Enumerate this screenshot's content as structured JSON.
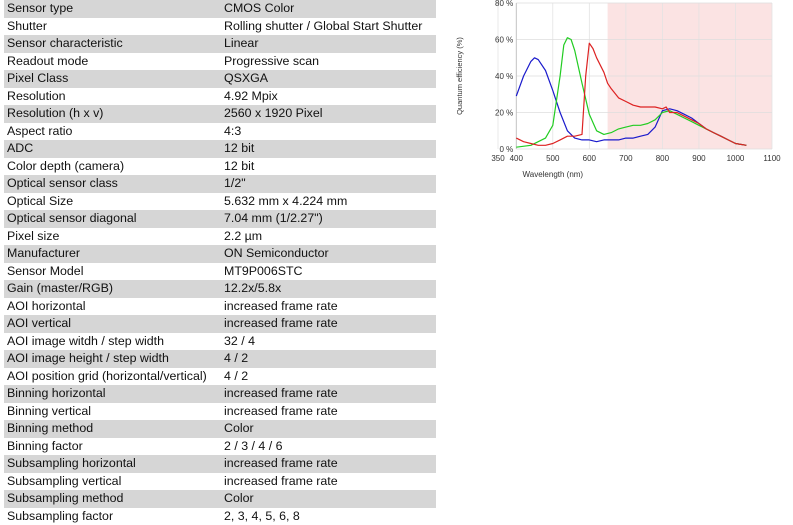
{
  "specs": [
    {
      "label": "Sensor type",
      "value": "CMOS Color"
    },
    {
      "label": "Shutter",
      "value": "Rolling shutter / Global Start Shutter"
    },
    {
      "label": "Sensor characteristic",
      "value": "Linear"
    },
    {
      "label": "Readout mode",
      "value": "Progressive scan"
    },
    {
      "label": "Pixel Class",
      "value": "QSXGA"
    },
    {
      "label": "Resolution",
      "value": "4.92 Mpix"
    },
    {
      "label": "Resolution (h x v)",
      "value": "2560 x 1920 Pixel"
    },
    {
      "label": "Aspect ratio",
      "value": "4:3"
    },
    {
      "label": "ADC",
      "value": "12 bit"
    },
    {
      "label": "Color depth (camera)",
      "value": "12 bit"
    },
    {
      "label": "Optical sensor class",
      "value": "1/2\""
    },
    {
      "label": "Optical Size",
      "value": "5.632 mm x 4.224 mm"
    },
    {
      "label": "Optical sensor diagonal",
      "value": "7.04 mm (1/2.27\")"
    },
    {
      "label": "Pixel size",
      "value": "2.2 µm"
    },
    {
      "label": "Manufacturer",
      "value": "ON Semiconductor"
    },
    {
      "label": "Sensor Model",
      "value": "MT9P006STC"
    },
    {
      "label": "Gain (master/RGB)",
      "value": "12.2x/5.8x"
    },
    {
      "label": "AOI horizontal",
      "value": "increased frame rate"
    },
    {
      "label": "AOI vertical",
      "value": "increased frame rate"
    },
    {
      "label": "AOI image witdh / step width",
      "value": "32 / 4"
    },
    {
      "label": "AOI image height / step width",
      "value": "4 / 2"
    },
    {
      "label": "AOI position grid (horizontal/vertical)",
      "value": "4 / 2"
    },
    {
      "label": "Binning horizontal",
      "value": "increased frame rate"
    },
    {
      "label": "Binning vertical",
      "value": "increased frame rate"
    },
    {
      "label": "Binning method",
      "value": "Color"
    },
    {
      "label": "Binning factor",
      "value": "2 / 3 / 4 / 6"
    },
    {
      "label": "Subsampling horizontal",
      "value": "increased frame rate"
    },
    {
      "label": "Subsampling vertical",
      "value": "increased frame rate"
    },
    {
      "label": "Subsampling method",
      "value": "Color"
    },
    {
      "label": "Subsampling factor",
      "value": "2, 3, 4, 5, 6, 8"
    }
  ],
  "chart_data": {
    "type": "line",
    "xlabel": "Wavelength (nm)",
    "ylabel": "Quantum efficiency (%)",
    "xlim": [
      350,
      1100
    ],
    "ylim": [
      0,
      80
    ],
    "xticks": [
      350,
      400,
      500,
      600,
      700,
      800,
      900,
      1000,
      1100
    ],
    "yticks": [
      0,
      20,
      40,
      60,
      80
    ],
    "ytick_labels": [
      "0 %",
      "20 %",
      "40 %",
      "60 %",
      "80 %"
    ],
    "shaded_region": {
      "x_from": 650,
      "x_to": 1100,
      "color": "#fbe3e3"
    },
    "grid": true,
    "series": [
      {
        "color": "#1a1acc",
        "x": [
          400,
          420,
          440,
          450,
          460,
          480,
          500,
          520,
          540,
          560,
          580,
          600,
          620,
          640,
          660,
          680,
          700,
          720,
          740,
          760,
          780,
          800,
          820,
          840,
          860,
          880,
          900,
          920,
          940,
          960,
          980,
          1000,
          1030
        ],
        "y": [
          29,
          40,
          48,
          50,
          49,
          43,
          32,
          20,
          10,
          6,
          5,
          5,
          4,
          5,
          5,
          5,
          6,
          6,
          7,
          8,
          12,
          21,
          22,
          21,
          19,
          17,
          14,
          11,
          9,
          7,
          5,
          3,
          2
        ]
      },
      {
        "color": "#22cc22",
        "x": [
          400,
          440,
          460,
          480,
          500,
          520,
          530,
          540,
          550,
          560,
          580,
          600,
          620,
          640,
          660,
          680,
          700,
          720,
          740,
          760,
          780,
          800,
          820,
          840,
          860,
          880,
          900,
          920,
          940,
          960,
          980,
          1000,
          1030
        ],
        "y": [
          1,
          2,
          4,
          6,
          13,
          40,
          57,
          61,
          60,
          54,
          36,
          19,
          10,
          8,
          9,
          11,
          12,
          13,
          13,
          14,
          16,
          20,
          21,
          19,
          17,
          15,
          13,
          11,
          9,
          7,
          5,
          3,
          2
        ]
      },
      {
        "color": "#dd2222",
        "x": [
          400,
          420,
          440,
          460,
          480,
          500,
          520,
          540,
          560,
          580,
          590,
          600,
          610,
          620,
          640,
          650,
          660,
          680,
          700,
          720,
          740,
          760,
          780,
          800,
          810,
          820,
          840,
          860,
          880,
          900,
          920,
          940,
          960,
          980,
          1000,
          1030
        ],
        "y": [
          6,
          4,
          3,
          2,
          2,
          3,
          5,
          7,
          7,
          8,
          40,
          58,
          55,
          50,
          42,
          36,
          33,
          28,
          26,
          24,
          23,
          23,
          23,
          22,
          23,
          20,
          20,
          18,
          16,
          14,
          11,
          9,
          7,
          5,
          3,
          2
        ]
      }
    ]
  }
}
